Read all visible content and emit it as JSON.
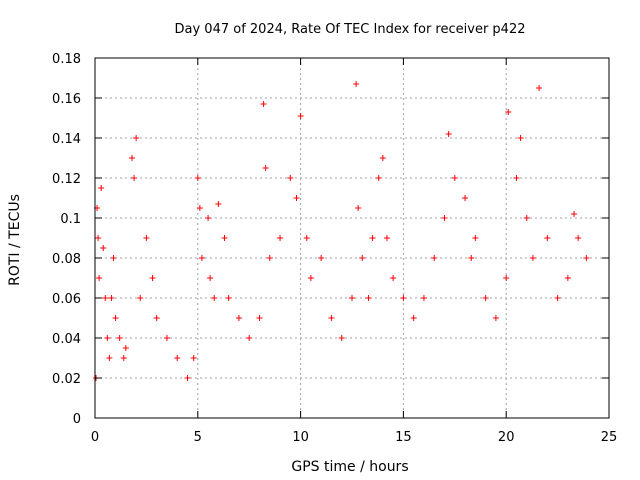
{
  "chart_data": {
    "type": "scatter",
    "title": "Day 047 of 2024, Rate Of TEC Index for receiver p422",
    "xlabel": "GPS time / hours",
    "ylabel": "ROTI / TECUs",
    "xlim": [
      0,
      25
    ],
    "ylim": [
      0,
      0.18
    ],
    "xticks": [
      0,
      5,
      10,
      15,
      20,
      25
    ],
    "xtick_labels": [
      "0",
      "5",
      "10",
      "15",
      "20",
      "25"
    ],
    "yticks": [
      0,
      0.02,
      0.04,
      0.06,
      0.08,
      0.1,
      0.12,
      0.14,
      0.16,
      0.18
    ],
    "ytick_labels": [
      "0",
      "0.02",
      "0.04",
      "0.06",
      "0.08",
      "0.1",
      "0.12",
      "0.14",
      "0.16",
      "0.18"
    ],
    "grid": true,
    "marker": "+",
    "color": "#ff0000",
    "series": [
      {
        "x": [
          0.05,
          0.1,
          0.15,
          0.2,
          0.3,
          0.4,
          0.5,
          0.6,
          0.7,
          0.8,
          0.9,
          1.0,
          1.2,
          1.4,
          1.5,
          1.8,
          1.9,
          2.0,
          2.2,
          2.5,
          2.8,
          3.0,
          3.5,
          4.0,
          4.5,
          4.8,
          5.0,
          5.1,
          5.2,
          5.5,
          5.6,
          5.8,
          6.0,
          6.3,
          6.5,
          7.0,
          7.5,
          8.0,
          8.2,
          8.3,
          8.5,
          9.0,
          9.5,
          9.8,
          10.0,
          10.3,
          10.5,
          11.0,
          11.5,
          12.0,
          12.5,
          12.7,
          12.8,
          13.0,
          13.3,
          13.5,
          13.8,
          14.0,
          14.2,
          14.5,
          15.0,
          15.5,
          16.0,
          16.5,
          17.0,
          17.2,
          17.5,
          18.0,
          18.3,
          18.5,
          19.0,
          19.5,
          20.0,
          20.1,
          20.5,
          20.7,
          21.0,
          21.3,
          21.6,
          22.0,
          22.5,
          23.0,
          23.3,
          23.5,
          23.9
        ],
        "y": [
          0.02,
          0.105,
          0.09,
          0.07,
          0.115,
          0.085,
          0.06,
          0.04,
          0.03,
          0.06,
          0.08,
          0.05,
          0.04,
          0.03,
          0.035,
          0.13,
          0.12,
          0.14,
          0.06,
          0.09,
          0.07,
          0.05,
          0.04,
          0.03,
          0.02,
          0.03,
          0.12,
          0.105,
          0.08,
          0.1,
          0.07,
          0.06,
          0.107,
          0.09,
          0.06,
          0.05,
          0.04,
          0.05,
          0.157,
          0.125,
          0.08,
          0.09,
          0.12,
          0.11,
          0.151,
          0.09,
          0.07,
          0.08,
          0.05,
          0.04,
          0.06,
          0.167,
          0.105,
          0.08,
          0.06,
          0.09,
          0.12,
          0.13,
          0.09,
          0.07,
          0.06,
          0.05,
          0.06,
          0.08,
          0.1,
          0.142,
          0.12,
          0.11,
          0.08,
          0.09,
          0.06,
          0.05,
          0.07,
          0.153,
          0.12,
          0.14,
          0.1,
          0.08,
          0.165,
          0.09,
          0.06,
          0.07,
          0.102,
          0.09,
          0.08
        ]
      }
    ]
  }
}
